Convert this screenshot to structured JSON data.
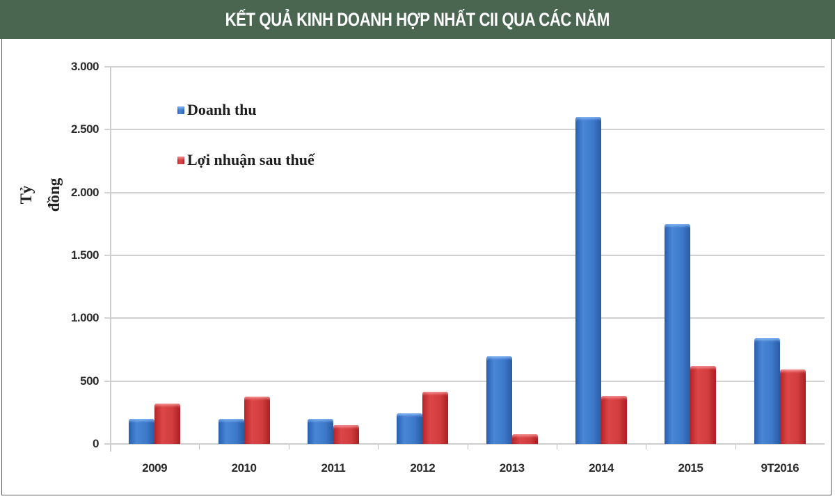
{
  "header": {
    "title": "KẾT QUẢ KINH DOANH HỢP NHẤT CII QUA CÁC NĂM"
  },
  "colors": {
    "header_bg": "#4a6651",
    "series_blue": "#3d78c9",
    "series_red": "#d13c3e"
  },
  "chart_data": {
    "type": "bar",
    "title": "KẾT QUẢ KINH DOANH HỢP NHẤT CII QUA CÁC NĂM",
    "xlabel": "",
    "ylabel": "Tỷ đồng",
    "categories": [
      "2009",
      "2010",
      "2011",
      "2012",
      "2013",
      "2014",
      "2015",
      "9T2016"
    ],
    "series": [
      {
        "name": "Doanh thu",
        "color": "#3d78c9",
        "values": [
          200,
          200,
          200,
          245,
          700,
          2600,
          1750,
          840
        ]
      },
      {
        "name": "Lợi nhuận sau thuế",
        "color": "#d13c3e",
        "values": [
          320,
          378,
          150,
          415,
          80,
          380,
          620,
          595
        ]
      }
    ],
    "ylim": [
      0,
      3000
    ],
    "yticks": [
      0,
      500,
      1000,
      1500,
      2000,
      2500,
      3000
    ],
    "ytick_labels": [
      "0",
      "500",
      "1.000",
      "1.500",
      "2.000",
      "2.500",
      "3.000"
    ],
    "grid": true,
    "legend_position": "upper-left-inside"
  },
  "legend": {
    "items": [
      {
        "label": "Doanh thu"
      },
      {
        "label": "Lợi nhuận sau thuế"
      }
    ]
  }
}
